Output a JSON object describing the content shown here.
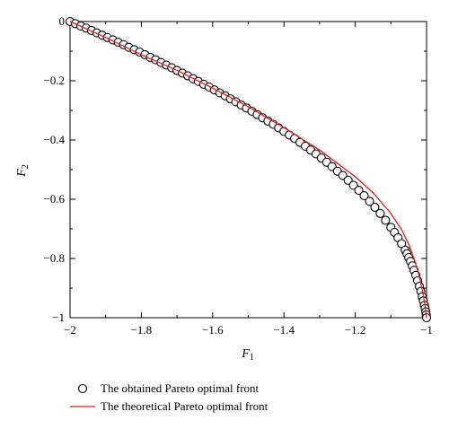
{
  "chart_data": {
    "type": "scatter",
    "title": "",
    "xlabel": "F",
    "xlabel_sub": "1",
    "ylabel": "F",
    "ylabel_sub": "2",
    "xlim": [
      -2,
      -1
    ],
    "ylim": [
      -1,
      0
    ],
    "xticks": [
      -2,
      -1.8,
      -1.6,
      -1.4,
      -1.2,
      -1
    ],
    "xtick_labels": [
      "−2",
      "−1.8",
      "−1.6",
      "−1.4",
      "−1.2",
      "−1"
    ],
    "yticks": [
      0,
      -0.2,
      -0.4,
      -0.6,
      -0.8,
      -1
    ],
    "ytick_labels": [
      "0",
      "−0.2",
      "−0.4",
      "−0.6",
      "−0.8",
      "−1"
    ],
    "grid": false,
    "legend_position": "bottom",
    "series": [
      {
        "name": "The obtained Pareto optimal front",
        "style": "open-circle",
        "color": "#000000",
        "x": [
          -2.0,
          -1.985,
          -1.97,
          -1.955,
          -1.94,
          -1.925,
          -1.91,
          -1.895,
          -1.88,
          -1.865,
          -1.85,
          -1.835,
          -1.82,
          -1.805,
          -1.79,
          -1.775,
          -1.76,
          -1.745,
          -1.73,
          -1.715,
          -1.7,
          -1.685,
          -1.67,
          -1.655,
          -1.64,
          -1.625,
          -1.61,
          -1.595,
          -1.58,
          -1.565,
          -1.55,
          -1.535,
          -1.52,
          -1.505,
          -1.49,
          -1.475,
          -1.46,
          -1.445,
          -1.43,
          -1.415,
          -1.4,
          -1.385,
          -1.37,
          -1.355,
          -1.34,
          -1.325,
          -1.31,
          -1.295,
          -1.28,
          -1.265,
          -1.25,
          -1.235,
          -1.22,
          -1.205,
          -1.19,
          -1.175,
          -1.16,
          -1.145,
          -1.13,
          -1.115,
          -1.1,
          -1.09,
          -1.08,
          -1.07,
          -1.06,
          -1.055,
          -1.05,
          -1.045,
          -1.04,
          -1.035,
          -1.03,
          -1.025,
          -1.02,
          -1.016,
          -1.012,
          -1.009,
          -1.006,
          -1.004,
          -1.002,
          -1.001,
          -1.0
        ],
        "y": [
          0.0,
          -0.007,
          -0.015,
          -0.022,
          -0.03,
          -0.038,
          -0.046,
          -0.054,
          -0.062,
          -0.07,
          -0.078,
          -0.087,
          -0.095,
          -0.103,
          -0.112,
          -0.121,
          -0.129,
          -0.138,
          -0.147,
          -0.156,
          -0.165,
          -0.174,
          -0.183,
          -0.193,
          -0.202,
          -0.212,
          -0.221,
          -0.231,
          -0.241,
          -0.251,
          -0.261,
          -0.271,
          -0.282,
          -0.292,
          -0.303,
          -0.314,
          -0.325,
          -0.336,
          -0.347,
          -0.359,
          -0.371,
          -0.383,
          -0.395,
          -0.408,
          -0.421,
          -0.434,
          -0.447,
          -0.461,
          -0.475,
          -0.49,
          -0.505,
          -0.52,
          -0.536,
          -0.553,
          -0.57,
          -0.588,
          -0.607,
          -0.627,
          -0.648,
          -0.671,
          -0.695,
          -0.712,
          -0.73,
          -0.75,
          -0.772,
          -0.784,
          -0.797,
          -0.81,
          -0.825,
          -0.84,
          -0.857,
          -0.875,
          -0.894,
          -0.911,
          -0.929,
          -0.943,
          -0.958,
          -0.969,
          -0.98,
          -0.99,
          -1.0
        ]
      },
      {
        "name": "The theoretical Pareto optimal front",
        "style": "line",
        "color": "#e02020",
        "x": [
          -2.0,
          -1.9,
          -1.8,
          -1.7,
          -1.6,
          -1.5,
          -1.4,
          -1.3,
          -1.2,
          -1.15,
          -1.1,
          -1.07,
          -1.05,
          -1.03,
          -1.02,
          -1.01,
          -1.005,
          -1.0
        ],
        "y": [
          0.0,
          -0.054,
          -0.112,
          -0.165,
          -0.225,
          -0.288,
          -0.358,
          -0.434,
          -0.524,
          -0.578,
          -0.648,
          -0.703,
          -0.752,
          -0.818,
          -0.862,
          -0.918,
          -0.955,
          -1.0
        ]
      }
    ]
  }
}
